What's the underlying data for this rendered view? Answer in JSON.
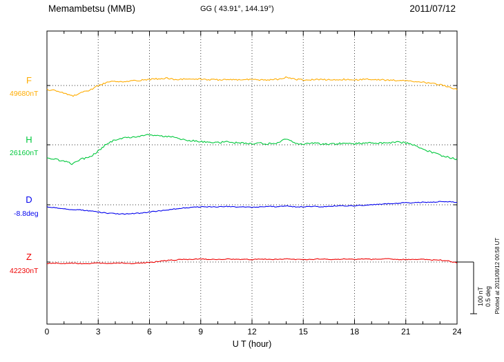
{
  "header": {
    "station": "Memambetsu (MMB)",
    "coords": "GG ( 43.91°, 144.19°)",
    "date": "2011/07/12"
  },
  "axes": {
    "xlabel": "U T (hour)",
    "xticks": [
      0,
      3,
      6,
      9,
      12,
      15,
      18,
      21,
      24
    ],
    "x_minor_step": 1,
    "grid_hours": [
      3,
      6,
      9,
      12,
      15,
      18,
      21
    ]
  },
  "scalebar": {
    "nt_label": "100 nT",
    "deg_label": "0.5 deg"
  },
  "footer_note": "Plotted at 2011/08/12 00:58 UT",
  "chart_data": {
    "type": "line",
    "title": "Memambetsu (MMB) magnetogram",
    "xlabel": "U T (hour)",
    "x_range": [
      0,
      24
    ],
    "x_step_hours": 0.5,
    "grid": true,
    "scale": {
      "nT_per_div": 100,
      "deg_per_div": 0.5
    },
    "series": [
      {
        "name": "F",
        "color": "#ffac00",
        "unit": "nT",
        "baseline_value": 49680,
        "baseline_label": "49680nT",
        "offsets": [
          -8,
          -10,
          -14,
          -21,
          -14,
          -9,
          0,
          6,
          8,
          7,
          9,
          10,
          12,
          13,
          14,
          12,
          12,
          13,
          12,
          11,
          11,
          12,
          11,
          12,
          12,
          11,
          11,
          12,
          16,
          12,
          11,
          11,
          12,
          11,
          11,
          12,
          11,
          12,
          12,
          11,
          10,
          10,
          9,
          8,
          6,
          4,
          2,
          -3,
          -8
        ]
      },
      {
        "name": "H",
        "color": "#00c83c",
        "unit": "nT",
        "baseline_value": 26160,
        "baseline_label": "26160nT",
        "offsets": [
          -24,
          -28,
          -32,
          -37,
          -28,
          -24,
          -12,
          2,
          10,
          13,
          15,
          17,
          19,
          17,
          16,
          14,
          10,
          8,
          6,
          5,
          4,
          6,
          4,
          3,
          2,
          3,
          2,
          4,
          11,
          4,
          2,
          3,
          2,
          1,
          2,
          3,
          2,
          3,
          4,
          3,
          4,
          5,
          4,
          0,
          -8,
          -14,
          -20,
          -24,
          -28
        ]
      },
      {
        "name": "D",
        "color": "#0000ee",
        "unit": "deg",
        "baseline_value": -8.8,
        "baseline_label": "-8.8deg",
        "offsets": [
          -0.02,
          -0.03,
          -0.04,
          -0.05,
          -0.05,
          -0.06,
          -0.07,
          -0.08,
          -0.085,
          -0.09,
          -0.085,
          -0.08,
          -0.07,
          -0.06,
          -0.05,
          -0.04,
          -0.03,
          -0.025,
          -0.02,
          -0.02,
          -0.02,
          -0.015,
          -0.02,
          -0.02,
          -0.025,
          -0.02,
          -0.015,
          -0.02,
          -0.01,
          -0.02,
          -0.02,
          -0.015,
          -0.02,
          -0.015,
          -0.01,
          -0.01,
          -0.01,
          -0.005,
          0,
          0.005,
          0.01,
          0.015,
          0.02,
          0.02,
          0.025,
          0.025,
          0.03,
          0.03,
          0.025
        ]
      },
      {
        "name": "Z",
        "color": "#ee0000",
        "unit": "nT",
        "baseline_value": 42230,
        "baseline_label": "42230nT",
        "offsets": [
          -3,
          -2,
          -3,
          -2,
          -3,
          -3,
          -2,
          -3,
          -2,
          -2,
          -3,
          -2,
          -1,
          1,
          3,
          4,
          5,
          5,
          6,
          5,
          5,
          6,
          5,
          5,
          5,
          6,
          5,
          5,
          6,
          5,
          5,
          5,
          6,
          5,
          5,
          6,
          5,
          6,
          5,
          6,
          6,
          5,
          5,
          5,
          5,
          4,
          4,
          2,
          -2
        ]
      }
    ]
  }
}
